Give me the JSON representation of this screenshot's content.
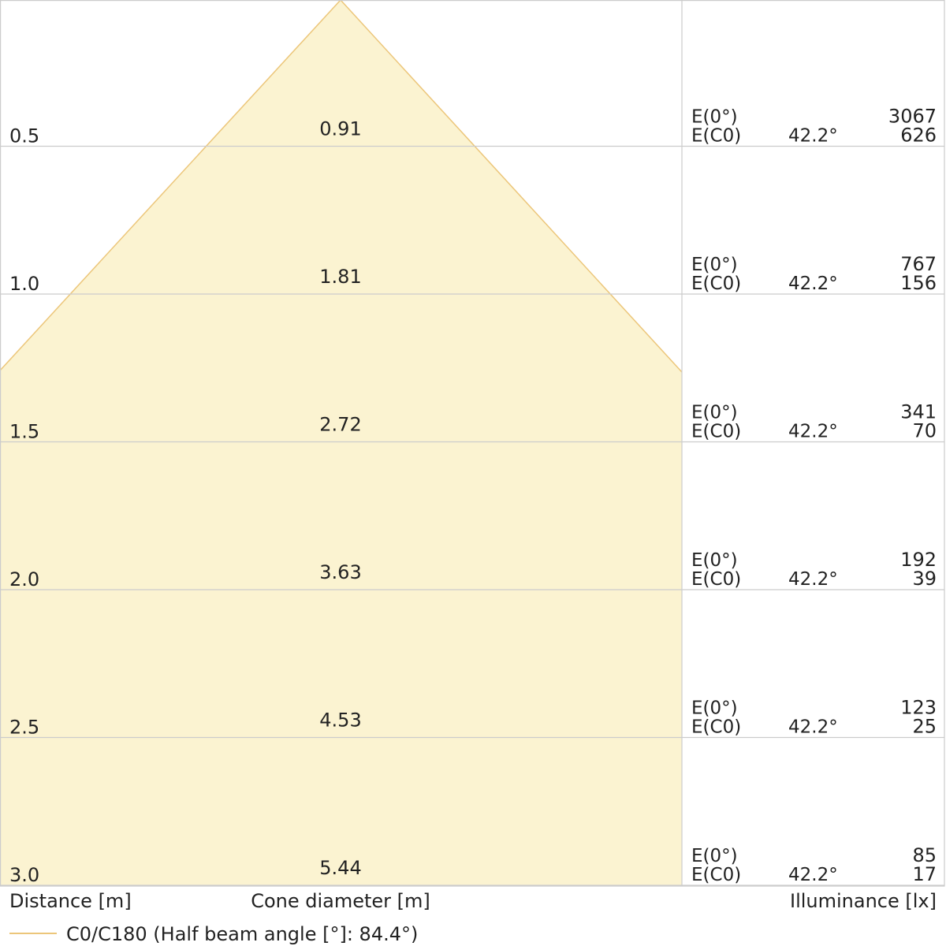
{
  "chart_data": {
    "type": "cone",
    "title": "",
    "beam_color": "#fbf3d1",
    "beam_edge_color": "#ecc67a",
    "grid_color": "#cccccc",
    "rows": [
      {
        "distance": "0.5",
        "cone_diameter": "0.91",
        "e0_label": "E(0°)",
        "ec0_label": "E(C0)",
        "half_angle": "42.2°",
        "e0": "3067",
        "ec0": "626"
      },
      {
        "distance": "1.0",
        "cone_diameter": "1.81",
        "e0_label": "E(0°)",
        "ec0_label": "E(C0)",
        "half_angle": "42.2°",
        "e0": "767",
        "ec0": "156"
      },
      {
        "distance": "1.5",
        "cone_diameter": "2.72",
        "e0_label": "E(0°)",
        "ec0_label": "E(C0)",
        "half_angle": "42.2°",
        "e0": "341",
        "ec0": "70"
      },
      {
        "distance": "2.0",
        "cone_diameter": "3.63",
        "e0_label": "E(0°)",
        "ec0_label": "E(C0)",
        "half_angle": "42.2°",
        "e0": "192",
        "ec0": "39"
      },
      {
        "distance": "2.5",
        "cone_diameter": "4.53",
        "e0_label": "E(0°)",
        "ec0_label": "E(C0)",
        "half_angle": "42.2°",
        "e0": "123",
        "ec0": "25"
      },
      {
        "distance": "3.0",
        "cone_diameter": "5.44",
        "e0_label": "E(0°)",
        "ec0_label": "E(C0)",
        "half_angle": "42.2°",
        "e0": "85",
        "ec0": "17"
      }
    ],
    "axis_titles": {
      "distance": "Distance [m]",
      "cone_diameter": "Cone diameter [m]",
      "illuminance": "Illuminance [lx]"
    },
    "legend": {
      "label": "C0/C180 (Half beam angle [°]: 84.4°)"
    }
  }
}
